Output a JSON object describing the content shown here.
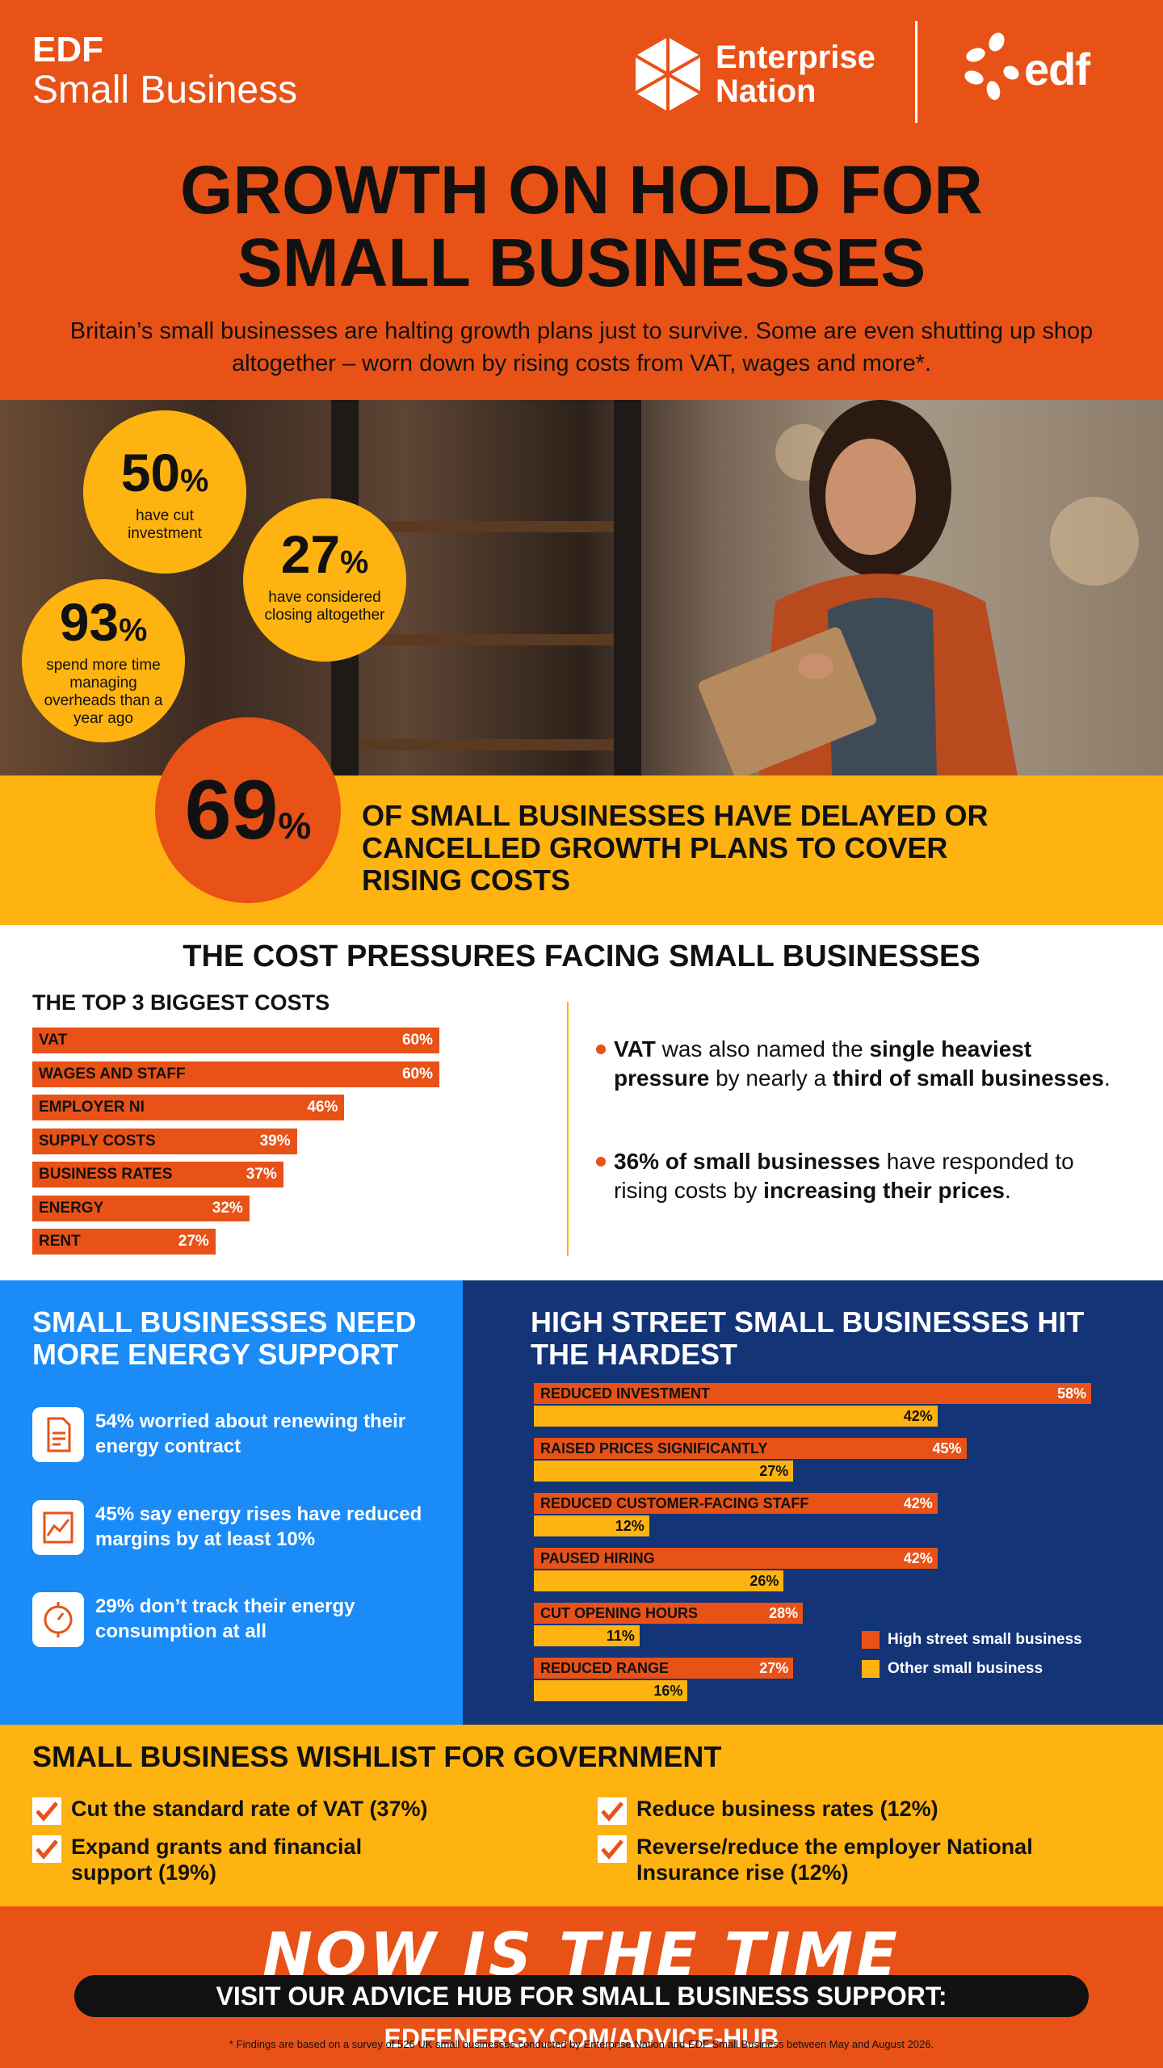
{
  "header": {
    "brand_line1": "EDF",
    "brand_line2": "Small Business",
    "partner_line1": "Enterprise",
    "partner_line2": "Nation",
    "edf_wordmark": "edf",
    "title_line1": "GROWTH ON HOLD FOR",
    "title_line2": "SMALL BUSINESSES",
    "intro": "Britain’s small businesses are halting growth plans just to survive. Some are even shutting up shop altogether – worn down by rising costs from VAT, wages and more*."
  },
  "stats": [
    {
      "value": "50",
      "unit": "%",
      "text": "have cut investment"
    },
    {
      "value": "27",
      "unit": "%",
      "text": "have considered closing altogether"
    },
    {
      "value": "93",
      "unit": "%",
      "text": "spend more time managing overheads than a year ago"
    }
  ],
  "headline_stat": {
    "value": "69",
    "unit": "%",
    "text": "OF SMALL BUSINESSES HAVE DELAYED OR CANCELLED GROWTH PLANS TO COVER RISING COSTS"
  },
  "cost_pressures": {
    "title": "THE COST PRESSURES FACING SMALL BUSINESSES",
    "subtitle": "THE TOP 3 BIGGEST COSTS",
    "bars": [
      {
        "label": "VAT",
        "value": 60,
        "display": "60%"
      },
      {
        "label": "WAGES AND STAFF",
        "value": 60,
        "display": "60%"
      },
      {
        "label": "EMPLOYER NI",
        "value": 46,
        "display": "46%"
      },
      {
        "label": "SUPPLY COSTS",
        "value": 39,
        "display": "39%"
      },
      {
        "label": "BUSINESS RATES",
        "value": 37,
        "display": "37%"
      },
      {
        "label": "ENERGY",
        "value": 32,
        "display": "32%"
      },
      {
        "label": "RENT",
        "value": 27,
        "display": "27%"
      }
    ],
    "bullets": [
      {
        "b1": "VAT",
        "t1": " was also named the ",
        "b2": "single heaviest pressure",
        "t2": " by nearly a ",
        "b3": "third of small businesses",
        "t3": "."
      },
      {
        "b1": "36% of small businesses",
        "t1": " have responded to rising costs by ",
        "b2": "increasing their prices",
        "t2": ".",
        "b3": "",
        "t3": ""
      }
    ]
  },
  "energy_support": {
    "title": "SMALL BUSINESSES NEED MORE ENERGY SUPPORT",
    "items": [
      {
        "icon": "document-icon",
        "text": "54% worried about renewing their energy contract"
      },
      {
        "icon": "chart-icon",
        "text": "45% say energy rises have reduced margins by at least 10%"
      },
      {
        "icon": "meter-icon",
        "text": "29% don’t track their energy consumption at all"
      }
    ]
  },
  "high_street": {
    "title": "HIGH STREET SMALL BUSINESSES HIT THE HARDEST",
    "legend": [
      {
        "name": "High street small business",
        "color": "#e85217"
      },
      {
        "name": "Other small business",
        "color": "#ffb310"
      }
    ],
    "chart_data": {
      "type": "bar",
      "categories": [
        "REDUCED INVESTMENT",
        "RAISED PRICES SIGNIFICANTLY",
        "REDUCED CUSTOMER-FACING STAFF",
        "PAUSED HIRING",
        "CUT OPENING HOURS",
        "REDUCED RANGE"
      ],
      "series": [
        {
          "name": "High street small business",
          "values": [
            58,
            45,
            42,
            42,
            28,
            27
          ]
        },
        {
          "name": "Other small business",
          "values": [
            42,
            27,
            12,
            26,
            11,
            16
          ]
        }
      ],
      "unit": "%"
    }
  },
  "wishlist": {
    "title": "SMALL BUSINESS WISHLIST FOR GOVERNMENT",
    "items": [
      "Cut the standard rate of VAT (37%)",
      "Expand grants and financial support (19%)",
      "Reduce business rates (12%)",
      "Reverse/reduce the employer National Insurance rise (12%)"
    ]
  },
  "footer": {
    "tagline": "NOW IS THE TIME",
    "cta": "VISIT OUR ADVICE HUB FOR SMALL BUSINESS SUPPORT: EDFENERGY.COM/ADVICE-HUB",
    "footnote": "* Findings are based on a survey of 526 UK small businesses conducted by Enterprise Nation and EDF Small Business between May and August 2026."
  },
  "colors": {
    "orange": "#e85217",
    "yellow": "#ffb310",
    "blue": "#1a8bf7",
    "navy": "#143478"
  }
}
